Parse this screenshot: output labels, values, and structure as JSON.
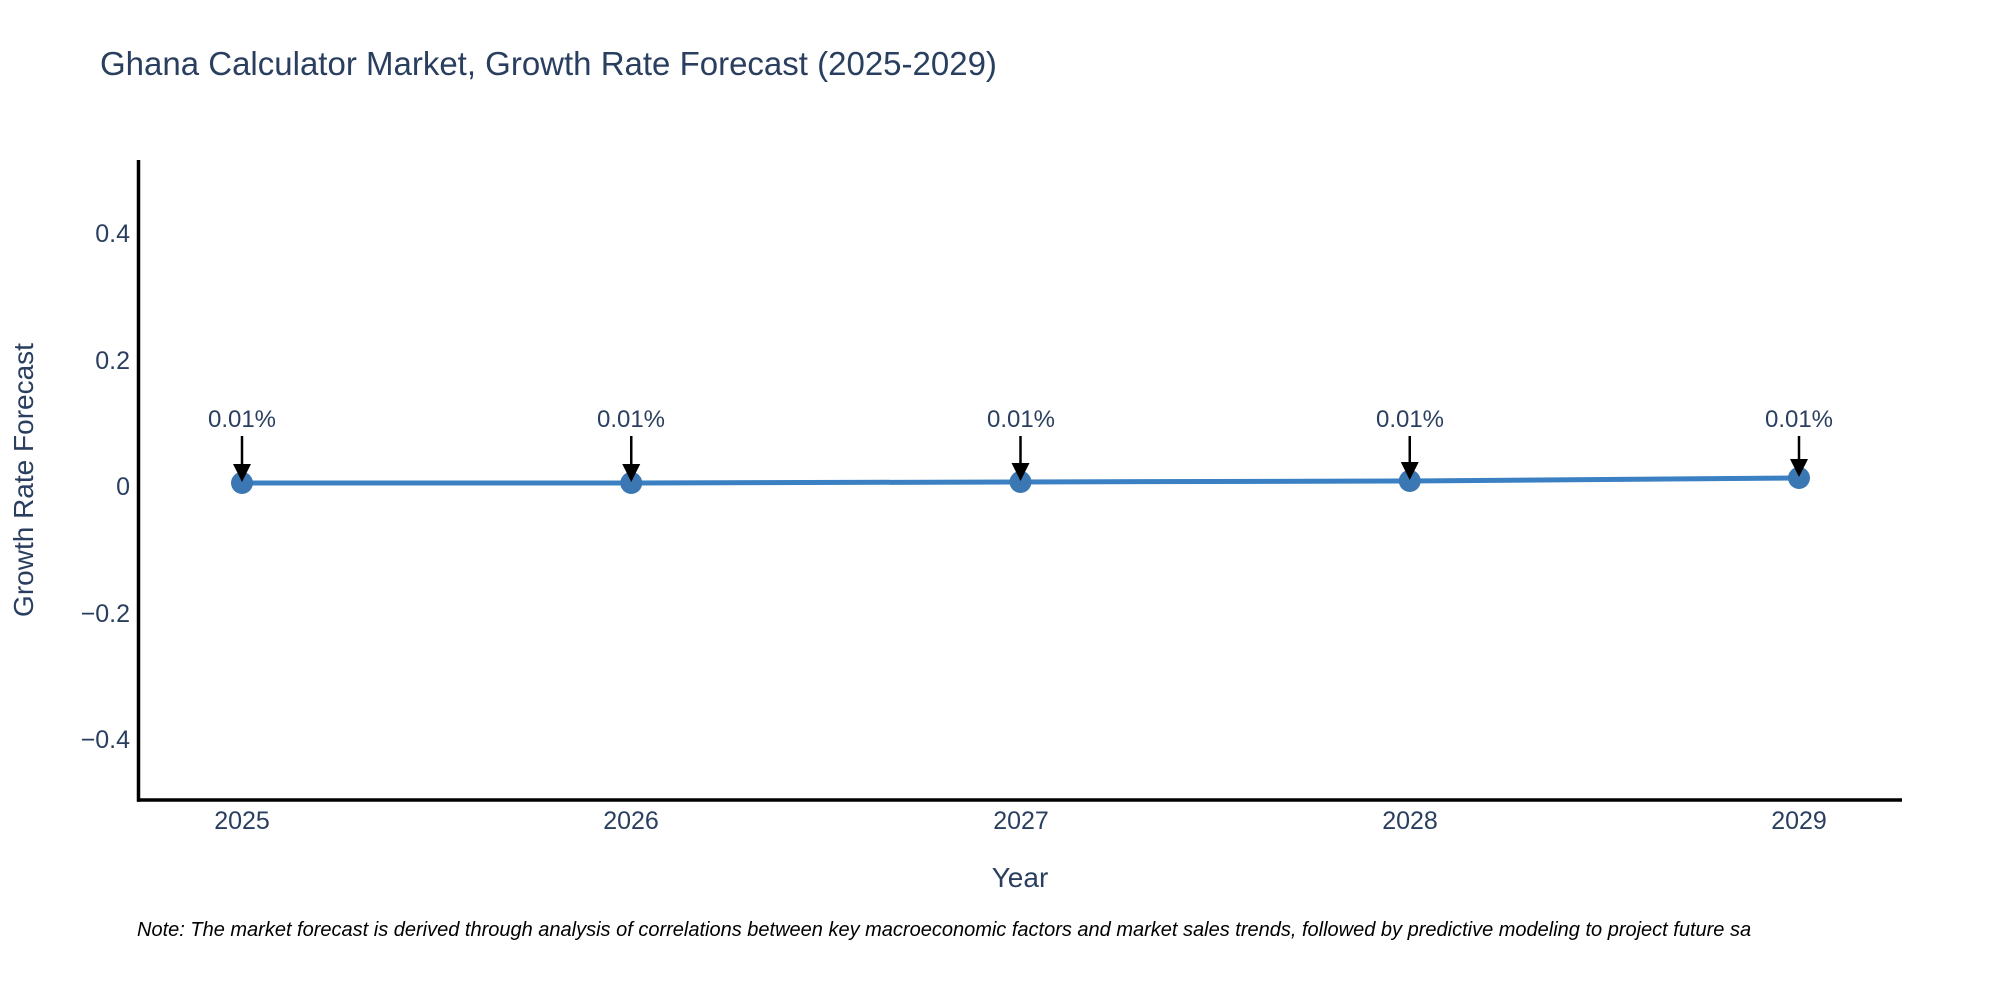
{
  "note": "Note: The market forecast is derived through analysis of correlations between key macroeconomic factors and market sales trends, followed by predictive modeling to project future sa",
  "colors": {
    "background": "#ffffff",
    "title_text": "#2a3f5f",
    "axis_text": "#2a3f5f",
    "annotation_text": "#2a3f5f",
    "note_text": "#000000",
    "axis_line": "#000000",
    "series_line": "#3a80c2",
    "marker_fill": "#3a77b3",
    "arrow": "#000000"
  },
  "chart_data": {
    "type": "line",
    "title": "Ghana Calculator Market, Growth Rate Forecast (2025-2029)",
    "xlabel": "Year",
    "ylabel": "Growth Rate Forecast",
    "x": [
      2025,
      2026,
      2027,
      2028,
      2029
    ],
    "series": [
      {
        "name": "Growth Rate Forecast",
        "values": [
          0.01,
          0.01,
          0.01,
          0.01,
          0.01
        ],
        "unit": "percent"
      }
    ],
    "point_labels": [
      "0.01%",
      "0.01%",
      "0.01%",
      "0.01%",
      "0.01%"
    ],
    "xticks": [
      "2025",
      "2026",
      "2027",
      "2028",
      "2029"
    ],
    "yticks": [
      {
        "label": "0.4",
        "value": 0.4
      },
      {
        "label": "0.2",
        "value": 0.2
      },
      {
        "label": "0",
        "value": 0
      },
      {
        "label": "−0.2",
        "value": -0.2
      },
      {
        "label": "−0.4",
        "value": -0.4
      }
    ],
    "ylim": [
      -0.5,
      0.51
    ],
    "grid": false,
    "legend": "none",
    "annotation_style": "value label above each point with downward arrow"
  }
}
